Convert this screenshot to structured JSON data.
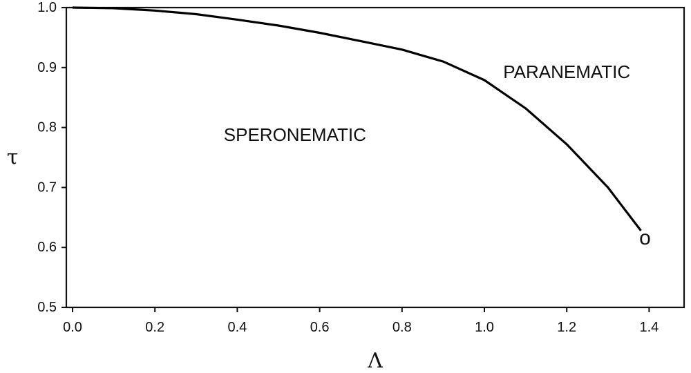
{
  "chart_data": {
    "type": "line",
    "title": "",
    "xlabel": "Λ",
    "ylabel": "τ",
    "xlim": [
      0.0,
      1.5
    ],
    "ylim": [
      0.5,
      1.0
    ],
    "x_ticks": [
      0.0,
      0.2,
      0.4,
      0.6,
      0.8,
      1.0,
      1.2,
      1.4
    ],
    "x_tick_labels": [
      "0.0",
      "0.2",
      "0.4",
      "0.6",
      "0.8",
      "1.0",
      "1.2",
      "1.4"
    ],
    "y_ticks": [
      0.5,
      0.6,
      0.7,
      0.8,
      0.9,
      1.0
    ],
    "y_tick_labels": [
      "0.5",
      "0.6",
      "0.7",
      "0.8",
      "0.9",
      "1.0"
    ],
    "grid": false,
    "series": [
      {
        "x": [
          0.0,
          0.1,
          0.2,
          0.3,
          0.4,
          0.5,
          0.6,
          0.7,
          0.8,
          0.9,
          1.0,
          1.1,
          1.2,
          1.3,
          1.38
        ],
        "y": [
          1.0,
          0.999,
          0.995,
          0.989,
          0.98,
          0.97,
          0.958,
          0.944,
          0.93,
          0.91,
          0.879,
          0.832,
          0.772,
          0.7,
          0.628
        ],
        "color": "#000000"
      }
    ],
    "annotations": [
      {
        "text": "SPERONEMATIC",
        "x": 0.54,
        "y": 0.788
      },
      {
        "text": "PARANEMATIC",
        "x": 1.2,
        "y": 0.893
      }
    ],
    "end_marker": {
      "text": "o",
      "x": 1.39,
      "y": 0.616
    }
  }
}
